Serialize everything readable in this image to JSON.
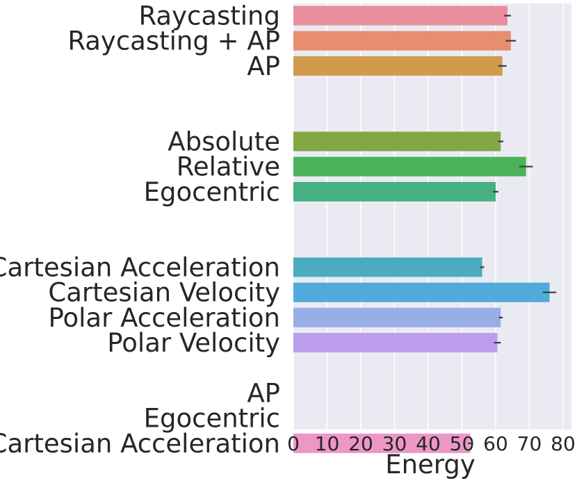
{
  "chart_data": {
    "type": "bar",
    "orientation": "horizontal",
    "xlabel": "Energy",
    "ylabel": "",
    "xlim": [
      0,
      82
    ],
    "xticks": [
      0,
      10,
      20,
      30,
      40,
      50,
      60,
      70,
      80
    ],
    "grid": true,
    "background": "#EAEAF2",
    "groups": [
      {
        "bars": [
          {
            "label": "Raycasting",
            "value": 63.5,
            "error": 1.0,
            "color": "#E98E9C"
          },
          {
            "label": "Raycasting + AP",
            "value": 64.5,
            "error": 1.5,
            "color": "#E68E6E"
          },
          {
            "label": "AP",
            "value": 62.0,
            "error": 1.2,
            "color": "#D19A4C"
          }
        ]
      },
      {
        "bars": [
          {
            "label": "Absolute",
            "value": 61.5,
            "error": 0.8,
            "color": "#82A845"
          },
          {
            "label": "Relative",
            "value": 69.0,
            "error": 2.0,
            "color": "#4CB25A"
          },
          {
            "label": "Egocentric",
            "value": 60.0,
            "error": 0.8,
            "color": "#47B082"
          }
        ]
      },
      {
        "bars": [
          {
            "label": "Cartesian Acceleration",
            "value": 56.0,
            "error": 0.6,
            "color": "#4CABBE"
          },
          {
            "label": "Cartesian Velocity",
            "value": 76.0,
            "error": 2.0,
            "color": "#50AADB"
          },
          {
            "label": "Polar Acceleration",
            "value": 61.5,
            "error": 0.6,
            "color": "#98AEE9"
          },
          {
            "label": "Polar Velocity",
            "value": 60.5,
            "error": 1.0,
            "color": "#BC9DED"
          }
        ]
      },
      {
        "bars": [
          {
            "label": "AP",
            "value": null,
            "error": null,
            "color": "#EC97C6"
          },
          {
            "label": "Egocentric",
            "value": null,
            "error": null,
            "color": "#EC97C6"
          },
          {
            "label": "Cartesian Acceleration",
            "value": 52.5,
            "error": 0.7,
            "color": "#EC97C6"
          }
        ]
      }
    ]
  }
}
